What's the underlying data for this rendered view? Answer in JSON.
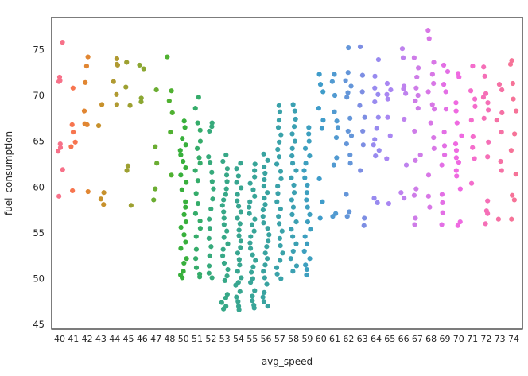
{
  "chart_data": {
    "type": "scatter",
    "subtype": "strip",
    "xlabel": "avg_speed",
    "ylabel": "fuel_consumption",
    "ylim": [
      44.5,
      78.5
    ],
    "yticks": [
      45,
      50,
      55,
      60,
      65,
      70,
      75
    ],
    "grid": false,
    "legend": "none",
    "categories": [
      "40",
      "41",
      "42",
      "43",
      "44",
      "45",
      "46",
      "47",
      "48",
      "50",
      "51",
      "52",
      "53",
      "54",
      "55",
      "56",
      "57",
      "58",
      "59",
      "60",
      "61",
      "62",
      "63",
      "64",
      "65",
      "66",
      "67",
      "68",
      "69",
      "70",
      "71",
      "72",
      "73",
      "74"
    ],
    "colors": [
      "#f77189",
      "#f7754f",
      "#e18632",
      "#c7912c",
      "#b09a31",
      "#9da031",
      "#8ba732",
      "#6bad32",
      "#50b131",
      "#38b03c",
      "#35ac6a",
      "#36aa7b",
      "#37a887",
      "#38a690",
      "#38a598",
      "#39a3a0",
      "#3aa2a9",
      "#3ba0b2",
      "#3d9fbf",
      "#3f9cca",
      "#519ad1",
      "#6496d9",
      "#7d8ee3",
      "#988aef",
      "#a986f2",
      "#be82ee",
      "#ce7ce8",
      "#d877e6",
      "#e36fe5",
      "#ef6ae1",
      "#f46dcc",
      "#f56fb7",
      "#f571a5",
      "#f67398"
    ],
    "series": [
      {
        "name": "40",
        "values": [
          75.8,
          72.0,
          71.6,
          71.5,
          64.7,
          64.3,
          63.9,
          61.9,
          59.0
        ]
      },
      {
        "name": "41",
        "values": [
          70.8,
          66.8,
          66.0,
          64.9,
          64.4,
          59.6
        ]
      },
      {
        "name": "42",
        "values": [
          74.2,
          73.2,
          71.4,
          68.3,
          66.9,
          66.8,
          59.5
        ]
      },
      {
        "name": "43",
        "values": [
          69.0,
          66.7,
          59.4,
          58.7,
          58.1
        ]
      },
      {
        "name": "44",
        "values": [
          74.0,
          73.4,
          73.3,
          71.5,
          70.1,
          69.0
        ]
      },
      {
        "name": "45",
        "values": [
          73.6,
          70.9,
          68.9,
          62.3,
          61.8,
          58.0
        ]
      },
      {
        "name": "46",
        "values": [
          73.3,
          72.9,
          69.7,
          69.3
        ]
      },
      {
        "name": "47",
        "values": [
          70.6,
          64.4,
          62.6,
          59.8,
          58.6
        ]
      },
      {
        "name": "48",
        "values": [
          74.2,
          70.5,
          69.4,
          68.1,
          66.0,
          61.3
        ]
      },
      {
        "name": "50",
        "values": [
          67.2,
          66.5,
          65.3,
          64.6,
          64.0,
          63.5,
          62.8,
          62.1,
          61.3,
          60.5,
          59.7,
          58.4,
          57.8,
          57.0,
          56.2,
          55.6,
          54.8,
          54.0,
          53.3,
          52.2,
          51.7,
          50.8,
          50.4,
          50.1
        ]
      },
      {
        "name": "51",
        "values": [
          69.8,
          68.6,
          67.0,
          66.2,
          65.0,
          64.2,
          63.2,
          62.6,
          61.8,
          60.7,
          59.3,
          58.2,
          57.1,
          56.3,
          55.5,
          54.6,
          53.2,
          52.2,
          51.2,
          50.5,
          50.2
        ]
      },
      {
        "name": "52",
        "values": [
          67.0,
          66.6,
          66.1,
          63.3,
          62.7,
          61.6,
          60.6,
          59.8,
          58.7,
          57.6,
          56.5,
          55.5,
          54.4,
          53.5,
          52.5,
          51.4,
          50.6,
          50.1
        ]
      },
      {
        "name": "53",
        "values": [
          63.5,
          62.8,
          62.0,
          61.3,
          60.6,
          59.8,
          59.2,
          58.6,
          58.0,
          57.3,
          56.6,
          55.9,
          55.2,
          54.5,
          53.8,
          53.2,
          52.5,
          51.7,
          51.0,
          50.3,
          49.8,
          48.3,
          47.9,
          47.4,
          47.0,
          46.7
        ]
      },
      {
        "name": "54",
        "values": [
          62.6,
          62.0,
          61.2,
          60.5,
          59.9,
          59.2,
          58.5,
          57.9,
          57.3,
          56.6,
          56.0,
          55.3,
          54.7,
          54.1,
          53.4,
          52.8,
          52.1,
          51.5,
          50.8,
          50.1,
          49.6,
          49.3,
          48.6,
          48.0,
          47.5,
          47.0,
          46.6
        ]
      },
      {
        "name": "55",
        "values": [
          62.5,
          61.8,
          61.1,
          60.4,
          59.7,
          59.0,
          58.4,
          57.8,
          57.1,
          56.5,
          55.9,
          55.2,
          54.6,
          53.9,
          53.3,
          52.6,
          52.0,
          51.3,
          50.7,
          50.0,
          49.6,
          48.7,
          48.1,
          47.6,
          47.1,
          46.8
        ]
      },
      {
        "name": "56",
        "values": [
          63.6,
          62.9,
          62.2,
          61.5,
          60.8,
          60.1,
          59.4,
          58.8,
          58.1,
          57.5,
          56.8,
          56.1,
          55.5,
          54.8,
          54.1,
          53.5,
          52.8,
          52.2,
          51.5,
          50.8,
          50.1,
          49.4,
          48.5,
          48.0,
          47.5,
          47.0
        ]
      },
      {
        "name": "57",
        "values": [
          68.9,
          68.2,
          67.3,
          66.5,
          65.7,
          64.9,
          64.1,
          63.3,
          62.5,
          61.7,
          60.9,
          60.1,
          59.3,
          58.4,
          57.6,
          56.8,
          56.0,
          55.2,
          54.4,
          53.6,
          52.8,
          52.0,
          51.2,
          50.5,
          50.0
        ]
      },
      {
        "name": "58",
        "values": [
          69.0,
          68.3,
          67.4,
          66.6,
          65.8,
          65.0,
          64.2,
          63.4,
          62.6,
          61.8,
          61.0,
          60.2,
          59.4,
          58.6,
          57.8,
          57.0,
          56.2,
          55.4,
          54.6,
          53.8,
          53.0,
          52.2,
          51.4,
          50.8
        ]
      },
      {
        "name": "59",
        "values": [
          66.5,
          65.8,
          65.0,
          64.2,
          63.4,
          62.6,
          61.8,
          61.0,
          60.2,
          59.4,
          58.6,
          57.8,
          57.0,
          56.2,
          55.4,
          54.6,
          53.8,
          53.0,
          52.2,
          51.5,
          51.0,
          50.4
        ]
      },
      {
        "name": "60",
        "values": [
          72.3,
          71.2,
          70.4,
          68.6,
          67.3,
          66.4,
          60.9,
          58.4,
          56.6
        ]
      },
      {
        "name": "61",
        "values": [
          72.3,
          71.5,
          70.0,
          68.2,
          67.2,
          66.5,
          65.4,
          63.2,
          62.4,
          57.1,
          56.8
        ]
      },
      {
        "name": "62",
        "values": [
          75.2,
          72.5,
          71.6,
          71.0,
          70.3,
          69.8,
          67.5,
          66.1,
          65.6,
          64.7,
          63.5,
          62.6,
          59.2,
          57.3,
          56.8
        ]
      },
      {
        "name": "63",
        "values": [
          75.3,
          72.2,
          70.4,
          68.9,
          67.6,
          66.1,
          64.6,
          61.8,
          56.6,
          55.8
        ]
      },
      {
        "name": "64",
        "values": [
          73.9,
          72.1,
          70.8,
          70.1,
          69.3,
          67.6,
          66.4,
          65.2,
          64.6,
          64.0,
          63.4,
          58.8,
          58.3
        ]
      },
      {
        "name": "65",
        "values": [
          71.3,
          70.6,
          70.1,
          69.6,
          67.6,
          65.6,
          63.1,
          58.2
        ]
      },
      {
        "name": "66",
        "values": [
          75.1,
          74.1,
          71.0,
          70.7,
          70.2,
          67.4,
          62.4,
          59.4,
          58.8
        ]
      },
      {
        "name": "67",
        "values": [
          74.1,
          73.0,
          72.0,
          70.8,
          70.0,
          69.4,
          68.6,
          66.1,
          63.5,
          62.9,
          59.8,
          59.1,
          56.6,
          55.9
        ]
      },
      {
        "name": "68",
        "values": [
          77.1,
          76.2,
          73.6,
          72.3,
          71.3,
          70.4,
          69.0,
          68.5,
          67.0,
          65.4,
          64.2,
          61.3,
          59.0,
          57.8
        ]
      },
      {
        "name": "69",
        "values": [
          73.3,
          72.6,
          71.2,
          70.4,
          68.5,
          66.0,
          64.5,
          63.5,
          62.4,
          59.2,
          58.3,
          57.2,
          55.9
        ]
      },
      {
        "name": "70",
        "values": [
          72.4,
          72.0,
          69.2,
          68.3,
          67.0,
          65.6,
          64.7,
          64.0,
          63.2,
          62.7,
          61.8,
          61.2,
          59.8,
          56.2,
          55.8
        ]
      },
      {
        "name": "71",
        "values": [
          73.2,
          70.5,
          69.6,
          68.8,
          67.3,
          65.5,
          64.3,
          63.1,
          60.4
        ]
      },
      {
        "name": "72",
        "values": [
          73.1,
          72.1,
          70.2,
          69.8,
          69.2,
          68.4,
          67.5,
          64.9,
          63.3,
          58.5,
          57.4,
          57.1,
          56.0
        ]
      },
      {
        "name": "73",
        "values": [
          71.2,
          70.6,
          68.1,
          67.3,
          66.0,
          62.8,
          61.8,
          56.5
        ]
      },
      {
        "name": "74",
        "values": [
          73.8,
          73.4,
          71.3,
          69.6,
          68.3,
          65.8,
          64.0,
          61.4,
          59.1,
          58.6,
          56.5
        ]
      }
    ]
  }
}
